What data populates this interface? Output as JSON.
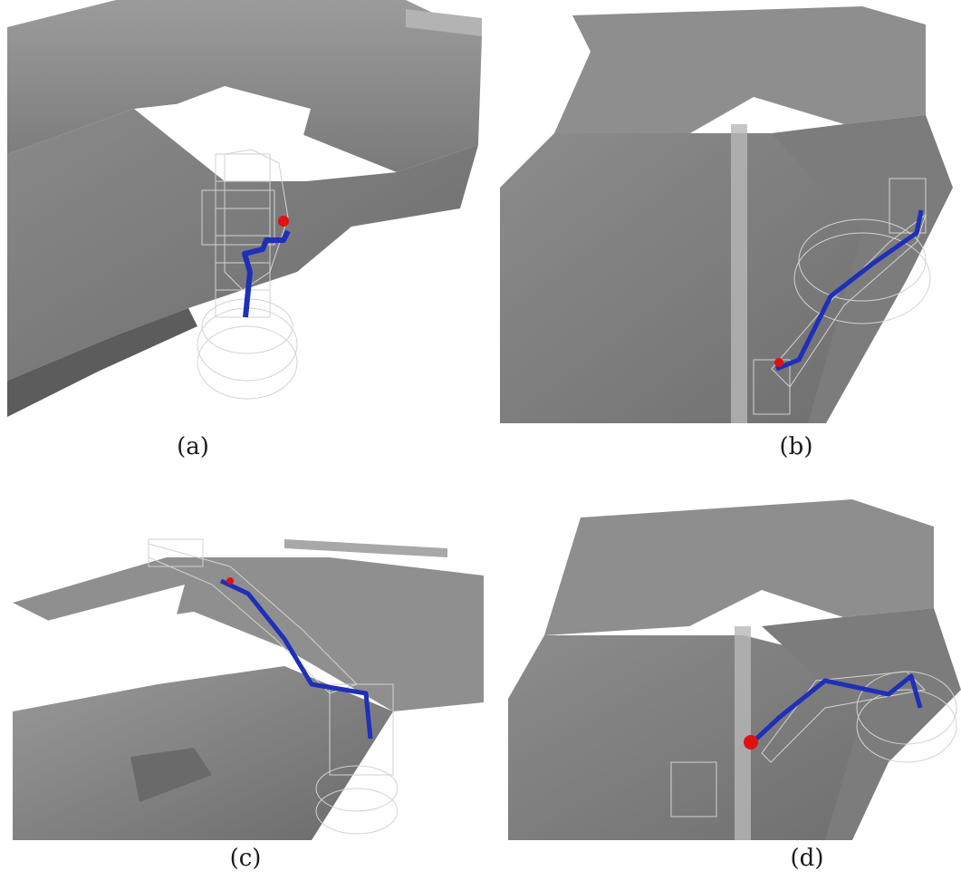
{
  "figure": {
    "panels": [
      {
        "id": "a",
        "caption": "(a)"
      },
      {
        "id": "b",
        "caption": "(b)"
      },
      {
        "id": "c",
        "caption": "(c)"
      },
      {
        "id": "d",
        "caption": "(d)"
      }
    ]
  },
  "colors": {
    "car_body_light": "#a9a9a9",
    "car_body_mid": "#8f8f8f",
    "car_body_dark": "#6e6e6e",
    "robot_wireframe": "#d4d4d4",
    "tool_path": "#1f2fb8",
    "target_point": "#e01010"
  },
  "icons": {
    "robot": "robot-arm-wireframe",
    "car": "car-body-model",
    "path": "tool-path-line",
    "target": "target-point-marker"
  }
}
